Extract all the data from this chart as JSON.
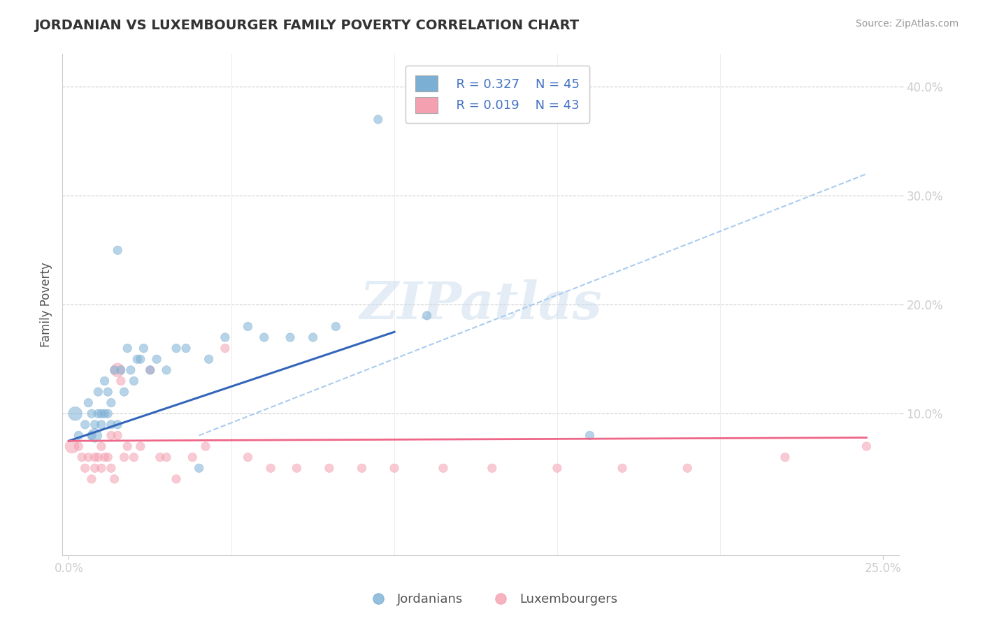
{
  "title": "JORDANIAN VS LUXEMBOURGER FAMILY POVERTY CORRELATION CHART",
  "source": "Source: ZipAtlas.com",
  "xlabel": "",
  "ylabel": "Family Poverty",
  "xlim": [
    -0.002,
    0.255
  ],
  "ylim": [
    -0.03,
    0.43
  ],
  "blue_color": "#7bafd4",
  "pink_color": "#f4a0b0",
  "blue_line_color": "#3366bb",
  "pink_line_color": "#ee6688",
  "dash_line_color": "#aaccee",
  "legend_R_blue": "R = 0.327",
  "legend_N_blue": "N = 45",
  "legend_R_pink": "R = 0.019",
  "legend_N_pink": "N = 43",
  "legend_label_blue": "Jordanians",
  "legend_label_pink": "Luxembourgers",
  "watermark": "ZIPatlas",
  "blue_scatter_x": [
    0.002,
    0.003,
    0.005,
    0.006,
    0.007,
    0.007,
    0.008,
    0.008,
    0.009,
    0.009,
    0.01,
    0.01,
    0.011,
    0.011,
    0.012,
    0.012,
    0.013,
    0.013,
    0.014,
    0.015,
    0.015,
    0.016,
    0.017,
    0.018,
    0.019,
    0.02,
    0.021,
    0.022,
    0.023,
    0.025,
    0.027,
    0.03,
    0.033,
    0.036,
    0.04,
    0.043,
    0.048,
    0.055,
    0.06,
    0.068,
    0.075,
    0.082,
    0.095,
    0.11,
    0.16
  ],
  "blue_scatter_y": [
    0.1,
    0.08,
    0.09,
    0.11,
    0.08,
    0.1,
    0.08,
    0.09,
    0.1,
    0.12,
    0.09,
    0.1,
    0.1,
    0.13,
    0.1,
    0.12,
    0.11,
    0.09,
    0.14,
    0.09,
    0.25,
    0.14,
    0.12,
    0.16,
    0.14,
    0.13,
    0.15,
    0.15,
    0.16,
    0.14,
    0.15,
    0.14,
    0.16,
    0.16,
    0.05,
    0.15,
    0.17,
    0.18,
    0.17,
    0.17,
    0.17,
    0.18,
    0.37,
    0.19,
    0.08
  ],
  "pink_scatter_x": [
    0.001,
    0.003,
    0.004,
    0.005,
    0.006,
    0.007,
    0.008,
    0.008,
    0.009,
    0.01,
    0.01,
    0.011,
    0.012,
    0.013,
    0.013,
    0.014,
    0.015,
    0.015,
    0.016,
    0.017,
    0.018,
    0.02,
    0.022,
    0.025,
    0.028,
    0.03,
    0.033,
    0.038,
    0.042,
    0.048,
    0.055,
    0.062,
    0.07,
    0.08,
    0.09,
    0.1,
    0.115,
    0.13,
    0.15,
    0.17,
    0.19,
    0.22,
    0.245
  ],
  "pink_scatter_y": [
    0.07,
    0.07,
    0.06,
    0.05,
    0.06,
    0.04,
    0.06,
    0.05,
    0.06,
    0.05,
    0.07,
    0.06,
    0.06,
    0.05,
    0.08,
    0.04,
    0.14,
    0.08,
    0.13,
    0.06,
    0.07,
    0.06,
    0.07,
    0.14,
    0.06,
    0.06,
    0.04,
    0.06,
    0.07,
    0.16,
    0.06,
    0.05,
    0.05,
    0.05,
    0.05,
    0.05,
    0.05,
    0.05,
    0.05,
    0.05,
    0.05,
    0.06,
    0.07
  ],
  "blue_scatter_sizes": [
    200,
    80,
    80,
    80,
    80,
    80,
    200,
    80,
    80,
    80,
    80,
    80,
    80,
    80,
    80,
    80,
    80,
    80,
    80,
    80,
    80,
    80,
    80,
    80,
    80,
    80,
    80,
    80,
    80,
    80,
    80,
    80,
    80,
    80,
    80,
    80,
    80,
    80,
    80,
    80,
    80,
    80,
    80,
    80,
    80
  ],
  "pink_scatter_sizes": [
    200,
    80,
    80,
    80,
    80,
    80,
    80,
    80,
    80,
    80,
    80,
    80,
    80,
    80,
    80,
    80,
    200,
    80,
    80,
    80,
    80,
    80,
    80,
    80,
    80,
    80,
    80,
    80,
    80,
    80,
    80,
    80,
    80,
    80,
    80,
    80,
    80,
    80,
    80,
    80,
    80,
    80,
    80
  ],
  "blue_line_x0": 0.0,
  "blue_line_y0": 0.075,
  "blue_line_x1": 0.1,
  "blue_line_y1": 0.175,
  "pink_line_x0": 0.0,
  "pink_line_y0": 0.075,
  "pink_line_x1": 0.245,
  "pink_line_y1": 0.078,
  "dash_line_x0": 0.04,
  "dash_line_y0": 0.08,
  "dash_line_x1": 0.245,
  "dash_line_y1": 0.32
}
